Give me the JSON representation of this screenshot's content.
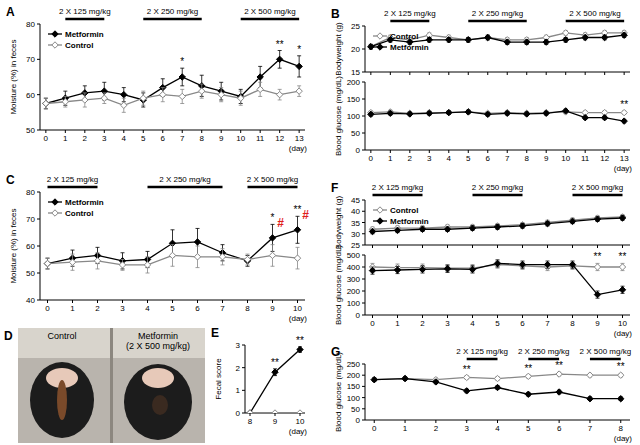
{
  "chart_data": [
    {
      "type": "line",
      "title": "A",
      "x": [
        0,
        1,
        2,
        3,
        4,
        5,
        6,
        7,
        8,
        9,
        10,
        11,
        12,
        13
      ],
      "xlim": [
        -0.3,
        13.3
      ],
      "xticks": [
        0,
        1,
        2,
        3,
        4,
        5,
        6,
        7,
        8,
        9,
        10,
        11,
        12,
        13
      ],
      "ylim": [
        50,
        80
      ],
      "yticks": [
        50,
        60,
        70,
        80
      ],
      "y_label": "Moisture (%) in feces",
      "x_label": "(day)",
      "legend": "upper left",
      "series": [
        {
          "name": "Metformin",
          "color": "#000000",
          "marker": "diamond",
          "values": [
            57.5,
            59,
            60.5,
            61,
            60,
            58.5,
            62,
            65,
            62.5,
            61,
            59.5,
            65,
            70,
            68
          ],
          "errors": [
            1.5,
            2,
            2,
            2.5,
            2,
            2,
            2.5,
            2.5,
            3,
            2.5,
            2,
            3,
            2.5,
            3
          ]
        },
        {
          "name": "Control",
          "color": "#888888",
          "marker": "open-diamond",
          "values": [
            57.5,
            58,
            58.5,
            59,
            57,
            59,
            60,
            59.5,
            61,
            60,
            59,
            61.5,
            60,
            61
          ],
          "errors": [
            1.5,
            1.5,
            2,
            1.5,
            2,
            2,
            2,
            2,
            2,
            2,
            2,
            2,
            1.5,
            1.5
          ]
        }
      ],
      "annotations": [
        {
          "x": 7,
          "text": "*"
        },
        {
          "x": 12,
          "text": "**"
        },
        {
          "x": 13,
          "text": "*"
        }
      ],
      "dose_periods": [
        {
          "label": "2 X 125 mg/kg",
          "start": 1,
          "end": 3
        },
        {
          "label": "2 X 250 mg/kg",
          "start": 5,
          "end": 8
        },
        {
          "label": "2 X 500 mg/kg",
          "start": 10,
          "end": 13
        }
      ]
    },
    {
      "type": "line",
      "title": "B",
      "x": [
        0,
        1,
        2,
        3,
        4,
        5,
        6,
        7,
        8,
        9,
        10,
        11,
        12,
        13
      ],
      "xlim": [
        -0.3,
        13.3
      ],
      "xticks": [
        0,
        1,
        2,
        3,
        4,
        5,
        6,
        7,
        8,
        9,
        10,
        11,
        12,
        13
      ],
      "ylim": [
        15,
        25
      ],
      "yticks": [
        15,
        20,
        25
      ],
      "y_label": "Bodyweight (g)",
      "tick_labels": "y",
      "legend": "upper left",
      "series": [
        {
          "name": "Control",
          "color": "#888888",
          "marker": "open-diamond",
          "values": [
            20.5,
            22.5,
            22,
            23,
            22.5,
            22,
            22.5,
            22,
            22,
            22.5,
            23.5,
            23,
            23.5,
            23.5
          ],
          "errors": [
            0.5,
            0.5,
            0.5,
            0.5,
            0.5,
            0.5,
            0.5,
            0.5,
            0.5,
            0.5,
            0.5,
            0.5,
            0.5,
            0.5
          ]
        },
        {
          "name": "Metformin",
          "color": "#000000",
          "marker": "diamond",
          "values": [
            20.5,
            22,
            21.5,
            22,
            22,
            22,
            22.5,
            21.5,
            21.5,
            21.5,
            22,
            22.5,
            22.5,
            23
          ],
          "errors": [
            0.5,
            0.5,
            0.5,
            0.5,
            0.5,
            0.5,
            0.5,
            0.5,
            0.5,
            0.5,
            0.5,
            0.5,
            0.5,
            0.5
          ]
        }
      ],
      "dose_periods": [
        {
          "label": "2 X 125 mg/kg",
          "start": 1,
          "end": 3
        },
        {
          "label": "2 X 250 mg/kg",
          "start": 5,
          "end": 8
        },
        {
          "label": "2 X 500 mg/kg",
          "start": 10,
          "end": 13
        }
      ]
    },
    {
      "type": "line",
      "x": [
        0,
        1,
        2,
        3,
        4,
        5,
        6,
        7,
        8,
        9,
        10,
        11,
        12,
        13
      ],
      "xlim": [
        -0.3,
        13.3
      ],
      "xticks": [
        0,
        1,
        2,
        3,
        4,
        5,
        6,
        7,
        8,
        9,
        10,
        11,
        12,
        13
      ],
      "ylim": [
        0,
        200
      ],
      "yticks": [
        0,
        50,
        100,
        150,
        200
      ],
      "y_label": "Blood glucose (mg/dL)",
      "x_label": "(day)",
      "series": [
        {
          "color": "#888888",
          "marker": "open-diamond",
          "values": [
            110,
            112,
            108,
            110,
            110,
            112,
            108,
            110,
            108,
            110,
            112,
            110,
            110,
            110
          ],
          "errors": [
            5,
            5,
            5,
            5,
            5,
            5,
            5,
            5,
            5,
            5,
            5,
            5,
            5,
            5
          ]
        },
        {
          "color": "#000000",
          "marker": "diamond",
          "values": [
            105,
            108,
            106,
            108,
            110,
            112,
            105,
            108,
            106,
            108,
            115,
            95,
            95,
            85
          ],
          "errors": [
            5,
            5,
            5,
            5,
            5,
            5,
            5,
            5,
            5,
            5,
            5,
            5,
            5,
            5
          ]
        }
      ],
      "annotations": [
        {
          "x": 13,
          "text": "**"
        }
      ]
    },
    {
      "type": "line",
      "title": "C",
      "x": [
        0,
        1,
        2,
        3,
        4,
        5,
        6,
        7,
        8,
        9,
        10
      ],
      "xlim": [
        -0.3,
        10.3
      ],
      "xticks": [
        0,
        1,
        2,
        3,
        4,
        5,
        6,
        7,
        8,
        9,
        10
      ],
      "ylim": [
        40,
        80
      ],
      "yticks": [
        40,
        50,
        60,
        70,
        80
      ],
      "y_label": "Moisture (%) in feces",
      "x_label": "(day)",
      "legend": "upper left",
      "series": [
        {
          "name": "Metformin",
          "color": "#000000",
          "marker": "diamond",
          "values": [
            53.5,
            55.5,
            56.5,
            54.5,
            55,
            61,
            61.5,
            57.5,
            54.5,
            63,
            66
          ],
          "errors": [
            2,
            3,
            3,
            3,
            3,
            5,
            5,
            3,
            2,
            5,
            5
          ]
        },
        {
          "name": "Control",
          "color": "#888888",
          "marker": "open-diamond",
          "values": [
            53.5,
            54,
            54.5,
            53,
            53,
            56.5,
            56,
            56,
            55,
            56.5,
            55.5
          ],
          "errors": [
            2,
            3,
            3,
            2,
            3,
            4,
            4,
            3,
            2,
            4,
            4
          ]
        }
      ],
      "annotations": [
        {
          "x": 9,
          "text": "*"
        },
        {
          "x": 9,
          "text": "#",
          "color": "#e0201b"
        },
        {
          "x": 10,
          "text": "**"
        },
        {
          "x": 10,
          "text": "#",
          "color": "#e0201b"
        }
      ],
      "dose_periods": [
        {
          "label": "2 X 125 mg/kg",
          "start": 0,
          "end": 2
        },
        {
          "label": "2 X 250 mg/kg",
          "start": 4,
          "end": 7
        },
        {
          "label": "2 X 500 mg/kg",
          "start": 8,
          "end": 10
        }
      ]
    },
    {
      "type": "line",
      "title": "E",
      "x": [
        8,
        9,
        10
      ],
      "xlim": [
        7.8,
        10.2
      ],
      "xticks": [
        8,
        9,
        10
      ],
      "ylim": [
        0,
        3
      ],
      "yticks": [
        0,
        1,
        2,
        3
      ],
      "y_label": "Fecal score",
      "x_label": "(day)",
      "series": [
        {
          "color": "#000000",
          "marker": "diamond",
          "values": [
            0,
            1.8,
            2.8
          ],
          "errors": [
            0,
            0.15,
            0.12
          ]
        },
        {
          "color": "#888888",
          "marker": "open-diamond",
          "values": [
            0,
            0,
            0
          ],
          "errors": [
            0,
            0,
            0
          ]
        }
      ],
      "annotations": [
        {
          "x": 9,
          "text": "**"
        },
        {
          "x": 10,
          "text": "**"
        }
      ]
    },
    {
      "type": "line",
      "title": "F",
      "x": [
        0,
        1,
        2,
        3,
        4,
        5,
        6,
        7,
        8,
        9,
        10
      ],
      "xlim": [
        -0.3,
        10.3
      ],
      "xticks": [
        0,
        1,
        2,
        3,
        4,
        5,
        6,
        7,
        8,
        9,
        10
      ],
      "ylim": [
        25,
        45
      ],
      "yticks": [
        25,
        30,
        35,
        40,
        45
      ],
      "y_label": "Bodyweight (g)",
      "tick_labels": "y",
      "legend": "upper left",
      "series": [
        {
          "name": "Control",
          "color": "#888888",
          "marker": "open-diamond",
          "values": [
            32,
            32.5,
            32.5,
            33,
            33,
            33.5,
            34,
            35,
            36,
            37,
            37.5
          ],
          "errors": [
            1,
            1,
            1,
            1,
            1,
            1,
            1,
            1,
            1,
            1,
            1
          ]
        },
        {
          "name": "Metformin",
          "color": "#000000",
          "marker": "diamond",
          "values": [
            31,
            31.5,
            32,
            32,
            32.5,
            33,
            33.5,
            34.5,
            35.5,
            36.5,
            37
          ],
          "errors": [
            1,
            1,
            1,
            1,
            1,
            1,
            1,
            1,
            1,
            1,
            1
          ]
        }
      ],
      "dose_periods": [
        {
          "label": "2 X 125 mg/kg",
          "start": 0,
          "end": 2
        },
        {
          "label": "2 X 250 mg/kg",
          "start": 4,
          "end": 6
        },
        {
          "label": "2 X 500 mg/kg",
          "start": 8,
          "end": 10
        }
      ]
    },
    {
      "type": "line",
      "x": [
        0,
        1,
        2,
        3,
        4,
        5,
        6,
        7,
        8,
        9,
        10
      ],
      "xlim": [
        -0.3,
        10.3
      ],
      "xticks": [
        0,
        1,
        2,
        3,
        4,
        5,
        6,
        7,
        8,
        9,
        10
      ],
      "ylim": [
        0,
        500
      ],
      "yticks": [
        0,
        100,
        200,
        300,
        400,
        500
      ],
      "y_label": "Blood glucose (mg/dL)",
      "x_label": "(day)",
      "series": [
        {
          "color": "#888888",
          "marker": "open-diamond",
          "values": [
            400,
            395,
            395,
            390,
            390,
            420,
            410,
            400,
            410,
            400,
            400
          ],
          "errors": [
            30,
            30,
            30,
            30,
            30,
            30,
            30,
            30,
            30,
            30,
            30
          ]
        },
        {
          "color": "#000000",
          "marker": "diamond",
          "values": [
            370,
            375,
            380,
            385,
            380,
            430,
            420,
            420,
            420,
            170,
            210
          ],
          "errors": [
            30,
            30,
            30,
            30,
            30,
            30,
            30,
            30,
            30,
            30,
            30
          ]
        }
      ],
      "annotations": [
        {
          "x": 9,
          "text": "**"
        },
        {
          "x": 10,
          "text": "**"
        }
      ]
    },
    {
      "type": "line",
      "title": "G",
      "x": [
        0,
        1,
        2,
        3,
        4,
        5,
        6,
        7,
        8
      ],
      "xlim": [
        -0.3,
        8.3
      ],
      "xticks": [
        0,
        1,
        2,
        3,
        4,
        5,
        6,
        7,
        8
      ],
      "ylim": [
        0,
        250
      ],
      "yticks": [
        0,
        50,
        100,
        150,
        200,
        250
      ],
      "y_label": "Blood glucose (mg/dL)",
      "x_label": "(day)",
      "series": [
        {
          "color": "#888888",
          "marker": "open-diamond",
          "values": [
            180,
            185,
            180,
            190,
            185,
            195,
            205,
            200,
            200
          ],
          "errors": [
            8,
            8,
            8,
            8,
            8,
            8,
            8,
            8,
            8
          ]
        },
        {
          "color": "#000000",
          "marker": "diamond",
          "values": [
            180,
            185,
            170,
            130,
            145,
            115,
            125,
            95,
            95
          ],
          "errors": [
            8,
            8,
            8,
            8,
            8,
            8,
            8,
            8,
            8
          ]
        }
      ],
      "annotations": [
        {
          "x": 3,
          "text": "**"
        },
        {
          "x": 5,
          "text": "**"
        },
        {
          "x": 6,
          "text": "**"
        },
        {
          "x": 8,
          "text": "**"
        }
      ],
      "dose_periods": [
        {
          "label": "2 X 125 mg/kg",
          "start": 3,
          "end": 4
        },
        {
          "label": "2 X 250 mg/kg",
          "start": 5,
          "end": 6
        },
        {
          "label": "2 X 500 mg/kg",
          "start": 7,
          "end": 8
        }
      ]
    }
  ],
  "photo": {
    "title": "D",
    "labels": [
      [
        "Control"
      ],
      [
        "Metformin",
        "(2 X 500 mg/kg)"
      ]
    ]
  }
}
